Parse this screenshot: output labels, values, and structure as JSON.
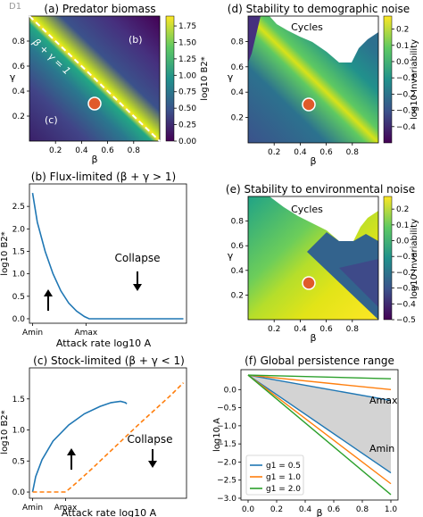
{
  "chart_data": [
    {
      "id": "a",
      "type": "heatmap",
      "title": "(a) Predator biomass",
      "xlabel": "β",
      "ylabel": "γ",
      "xlim": [
        0.0,
        1.0
      ],
      "ylim": [
        0.0,
        1.0
      ],
      "xticks": [
        0.2,
        0.4,
        0.6,
        0.8
      ],
      "yticks": [
        0.2,
        0.4,
        0.6,
        0.8
      ],
      "xtick_labels": [
        "0.2",
        "0.4",
        "0.6",
        "0.8"
      ],
      "ytick_labels": [
        "0.2",
        "0.4",
        "0.6",
        "0.8"
      ],
      "colormap": [
        "#440154",
        "#3b528b",
        "#21918c",
        "#5ec962",
        "#fde725"
      ],
      "colorbar": {
        "label": "log10 B2*",
        "range": [
          0.0,
          1.9
        ],
        "ticks": [
          0.0,
          0.25,
          0.5,
          0.75,
          1.0,
          1.25,
          1.5,
          1.75
        ],
        "tick_labels": [
          "0.00",
          "0.25",
          "0.50",
          "0.75",
          "1.00",
          "1.25",
          "1.50",
          "1.75"
        ]
      },
      "regions": {
        "upper": "(b)",
        "lower": "(c)"
      },
      "boundary_label": "β + γ = 1",
      "corner_label": "D1",
      "marker": {
        "x": 0.5,
        "y": 0.3,
        "color": "#e05a2a"
      }
    },
    {
      "id": "d",
      "type": "heatmap",
      "title": "(d) Stability to demographic noise",
      "xlabel": "β",
      "ylabel": "γ",
      "xlim": [
        0.0,
        1.0
      ],
      "ylim": [
        0.0,
        1.0
      ],
      "xticks": [
        0.2,
        0.4,
        0.6,
        0.8
      ],
      "yticks": [
        0.2,
        0.4,
        0.6,
        0.8
      ],
      "xtick_labels": [
        "0.2",
        "0.4",
        "0.6",
        "0.8"
      ],
      "ytick_labels": [
        "0.2",
        "0.4",
        "0.6",
        "0.8"
      ],
      "region_label": "Cycles",
      "colorbar": {
        "label": "log10 Invariability",
        "range": [
          -0.5,
          0.28
        ],
        "ticks": [
          -0.4,
          -0.3,
          -0.2,
          -0.1,
          0.0,
          0.1,
          0.2
        ],
        "tick_labels": [
          "−0.4",
          "−0.3",
          "−0.2",
          "−0.1",
          "0.0",
          "0.1",
          "0.2"
        ]
      },
      "marker": {
        "x": 0.5,
        "y": 0.3,
        "color": "#e05a2a"
      }
    },
    {
      "id": "b",
      "type": "line",
      "title": "(b) Flux-limited (β + γ > 1)",
      "xlabel": "Attack rate log10 A",
      "ylabel": "log10 B2*",
      "xlim": [
        0,
        10
      ],
      "ylim": [
        -0.1,
        3.0
      ],
      "xtick_labels": [
        "Amin",
        "Amax"
      ],
      "xticks": [
        0.2,
        3.6
      ],
      "yticks": [
        0.0,
        0.5,
        1.0,
        1.5,
        2.0,
        2.5
      ],
      "ytick_labels": [
        "0.0",
        "0.5",
        "1.0",
        "1.5",
        "2.0",
        "2.5"
      ],
      "series": [
        {
          "color": "#1f77b4",
          "style": "solid",
          "x": [
            0.2,
            0.5,
            1.0,
            1.5,
            2.0,
            2.5,
            3.0,
            3.5,
            3.8,
            5.0,
            7.0,
            9.8
          ],
          "y": [
            2.8,
            2.15,
            1.5,
            1.0,
            0.62,
            0.35,
            0.17,
            0.05,
            0.0,
            0.0,
            0.0,
            0.0
          ]
        }
      ],
      "annotations": [
        "Collapse"
      ]
    },
    {
      "id": "e",
      "type": "heatmap",
      "title": "(e) Stability to environmental noise",
      "xlabel": "β",
      "ylabel": "γ",
      "xlim": [
        0.0,
        1.0
      ],
      "ylim": [
        0.0,
        1.0
      ],
      "xticks": [
        0.2,
        0.4,
        0.6,
        0.8
      ],
      "yticks": [
        0.2,
        0.4,
        0.6,
        0.8
      ],
      "xtick_labels": [
        "0.2",
        "0.4",
        "0.6",
        "0.8"
      ],
      "ytick_labels": [
        "0.2",
        "0.4",
        "0.6",
        "0.8"
      ],
      "region_label": "Cycles",
      "colorbar": {
        "label": "log10 Invariability",
        "range": [
          -0.5,
          0.28
        ],
        "ticks": [
          -0.5,
          -0.4,
          -0.3,
          -0.2,
          -0.1,
          0.0,
          0.1,
          0.2
        ],
        "tick_labels": [
          "−0.5",
          "−0.4",
          "−0.3",
          "−0.2",
          "−0.1",
          "0.0",
          "0.1",
          "0.2"
        ]
      },
      "marker": {
        "x": 0.5,
        "y": 0.3,
        "color": "#e05a2a"
      }
    },
    {
      "id": "c",
      "type": "line",
      "title": "(c) Stock-limited (β + γ < 1)",
      "xlabel": "Attack rate log10 A",
      "ylabel": "log10 B2*",
      "xlim": [
        0,
        10
      ],
      "ylim": [
        -0.1,
        2.0
      ],
      "xtick_labels": [
        "Amin",
        "Amax"
      ],
      "xticks": [
        0.2,
        2.3
      ],
      "yticks": [
        0.0,
        0.5,
        1.0,
        1.5
      ],
      "ytick_labels": [
        "0.0",
        "0.5",
        "1.0",
        "1.5"
      ],
      "series": [
        {
          "color": "#1f77b4",
          "style": "solid",
          "x": [
            0.2,
            0.4,
            0.8,
            1.5,
            2.5,
            3.5,
            4.5,
            5.2,
            5.8,
            6.1,
            6.2
          ],
          "y": [
            0.0,
            0.25,
            0.52,
            0.82,
            1.08,
            1.26,
            1.38,
            1.44,
            1.46,
            1.44,
            1.42
          ]
        },
        {
          "color": "#ff7f0e",
          "style": "dashed",
          "x": [
            0.2,
            1.0,
            2.3,
            3.0,
            4.0,
            5.0,
            6.0,
            7.0,
            8.0,
            9.0,
            9.8
          ],
          "y": [
            0.0,
            0.0,
            0.0,
            0.15,
            0.38,
            0.62,
            0.86,
            1.1,
            1.33,
            1.56,
            1.76
          ]
        }
      ],
      "annotations": [
        "Collapse"
      ]
    },
    {
      "id": "f",
      "type": "line",
      "title": "(f) Global persistence range",
      "xlabel": "β",
      "ylabel": "log10 A",
      "xlim": [
        -0.05,
        1.05
      ],
      "ylim": [
        -3.05,
        0.55
      ],
      "xticks": [
        0.0,
        0.2,
        0.4,
        0.6,
        0.8,
        1.0
      ],
      "xtick_labels": [
        "0.0",
        "0.2",
        "0.4",
        "0.6",
        "0.8",
        "1.0"
      ],
      "yticks": [
        0.0,
        -0.5,
        -1.0,
        -1.5,
        -2.0,
        -2.5,
        -3.0
      ],
      "ytick_labels": [
        "0.0",
        "−0.5",
        "−1.0",
        "−1.5",
        "−2.0",
        "−2.5",
        "−3.0"
      ],
      "series": [
        {
          "name": "g1 = 0.5",
          "color": "#1f77b4",
          "x": [
            0.0,
            1.0
          ],
          "y_upper": [
            0.4,
            -0.3
          ],
          "y_lower": [
            0.4,
            -2.3
          ]
        },
        {
          "name": "g1 = 1.0",
          "color": "#ff7f0e",
          "x": [
            0.0,
            1.0
          ],
          "y_upper": [
            0.4,
            0.0
          ],
          "y_lower": [
            0.4,
            -2.6
          ]
        },
        {
          "name": "g1 = 2.0",
          "color": "#2ca02c",
          "x": [
            0.0,
            1.0
          ],
          "y_upper": [
            0.4,
            0.3
          ],
          "y_lower": [
            0.4,
            -2.9
          ]
        }
      ],
      "shaded_region": {
        "color": "#d3d3d3",
        "x": [
          0.0,
          1.0
        ],
        "y_upper": [
          0.4,
          -0.3
        ],
        "y_lower": [
          0.4,
          -2.3
        ]
      },
      "annotations": [
        "Amax",
        "Amin"
      ],
      "legend": "lower-left"
    }
  ]
}
